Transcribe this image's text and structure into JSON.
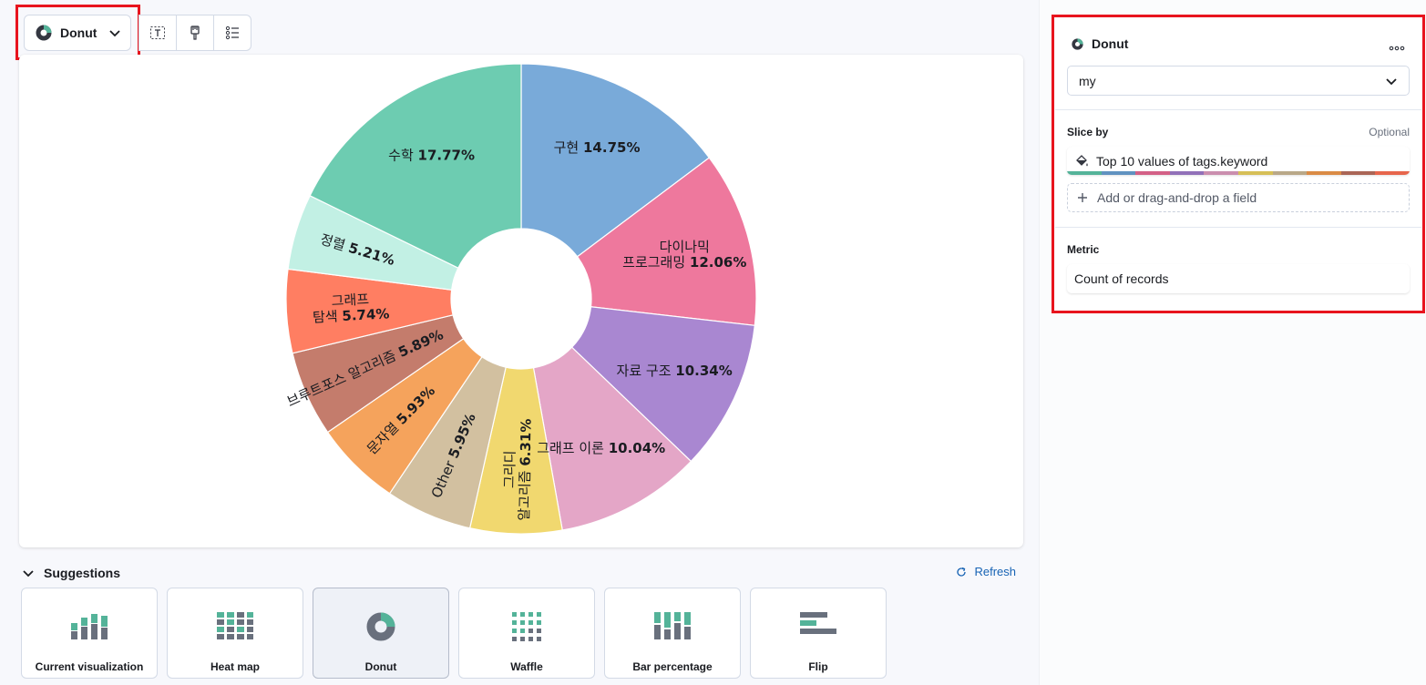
{
  "toolbar": {
    "chart_type_label": "Donut",
    "icons": [
      "text-field-icon",
      "brush-icon",
      "list-icon"
    ]
  },
  "chart_data": {
    "type": "pie",
    "donut": true,
    "slices": [
      {
        "name": "구현",
        "value": 14.75,
        "color": "#79aad9",
        "label_lines": [
          "구현"
        ]
      },
      {
        "name": "다이나믹 프로그래밍",
        "value": 12.06,
        "color": "#ee789d",
        "label_lines": [
          "다이나믹",
          "프로그래밍"
        ]
      },
      {
        "name": "자료 구조",
        "value": 10.34,
        "color": "#a987d1",
        "label_lines": [
          "자료 구조"
        ]
      },
      {
        "name": "그래프 이론",
        "value": 10.04,
        "color": "#e4a6c7",
        "label_lines": [
          "그래프 이론"
        ]
      },
      {
        "name": "그리디 알고리즘",
        "value": 6.31,
        "color": "#f1d86f",
        "label_lines": [
          "그리디",
          "알고리즘"
        ]
      },
      {
        "name": "Other",
        "value": 5.95,
        "color": "#d2c0a0",
        "label_lines": [
          "Other"
        ]
      },
      {
        "name": "문자열",
        "value": 5.93,
        "color": "#f5a35c",
        "label_lines": [
          "문자열"
        ]
      },
      {
        "name": "브루트포스 알고리즘",
        "value": 5.89,
        "color": "#c47c6c",
        "label_lines": [
          "브루트포스 알고리즘"
        ]
      },
      {
        "name": "그래프 탐색",
        "value": 5.74,
        "color": "#ff7e62",
        "label_lines": [
          "그래프",
          "탐색"
        ]
      },
      {
        "name": "정렬",
        "value": 5.21,
        "color": "#c2f0e4",
        "label_lines": [
          "정렬"
        ]
      },
      {
        "name": "수학",
        "value": 17.77,
        "color": "#6dccb1",
        "label_lines": [
          "수학"
        ]
      }
    ],
    "value_suffix": "%"
  },
  "suggestions": {
    "title": "Suggestions",
    "refresh_label": "Refresh",
    "items": [
      {
        "label": "Current visualization",
        "icon": "bar-chart-icon",
        "selected": false
      },
      {
        "label": "Heat map",
        "icon": "heatmap-icon",
        "selected": false
      },
      {
        "label": "Donut",
        "icon": "donut-icon",
        "selected": true
      },
      {
        "label": "Waffle",
        "icon": "waffle-icon",
        "selected": false
      },
      {
        "label": "Bar percentage",
        "icon": "bar-percentage-icon",
        "selected": false
      },
      {
        "label": "Flip",
        "icon": "flip-icon",
        "selected": false
      }
    ]
  },
  "config": {
    "title": "Donut",
    "layer_select_value": "my",
    "slice_by_label": "Slice by",
    "optional_label": "Optional",
    "slice_by_value": "Top 10 values of tags.keyword",
    "add_field_label": "Add or drag-and-drop a field",
    "metric_label": "Metric",
    "metric_value": "Count of records",
    "palette": [
      "#54b399",
      "#6092c0",
      "#d36086",
      "#9170b8",
      "#ca8eae",
      "#d6bf57",
      "#b9a888",
      "#da8b45",
      "#aa6556",
      "#e7664c"
    ]
  },
  "colors": {
    "accent": "#1763b4",
    "highlight_box": "#e8141e"
  }
}
